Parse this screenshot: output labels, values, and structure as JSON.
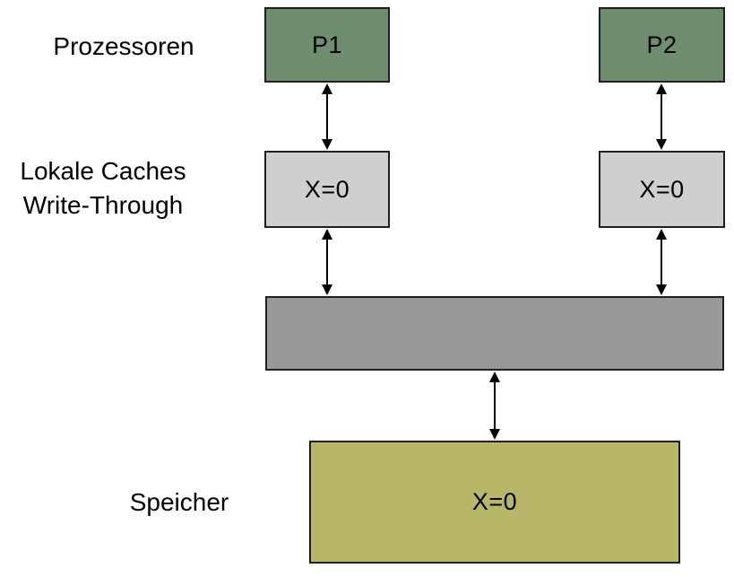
{
  "diagram": {
    "row_labels": {
      "processors": "Prozessoren",
      "caches_line1": "Lokale Caches",
      "caches_line2": "Write-Through",
      "memory": "Speicher"
    },
    "nodes": {
      "processor1": {
        "label": "P1"
      },
      "processor2": {
        "label": "P2"
      },
      "cache1": {
        "value": "X=0"
      },
      "cache2": {
        "value": "X=0"
      },
      "bus": {
        "label": ""
      },
      "memory": {
        "value": "X=0"
      }
    },
    "connections": [
      {
        "from": "processor1",
        "to": "cache1",
        "style": "double-headed-arrow"
      },
      {
        "from": "processor2",
        "to": "cache2",
        "style": "double-headed-arrow"
      },
      {
        "from": "cache1",
        "to": "bus",
        "style": "double-headed-arrow"
      },
      {
        "from": "cache2",
        "to": "bus",
        "style": "double-headed-arrow"
      },
      {
        "from": "bus",
        "to": "memory",
        "style": "double-headed-arrow"
      }
    ],
    "colors": {
      "processor_fill": "#6F8D6F",
      "cache_fill": "#CFCFCF",
      "bus_fill": "#989898",
      "memory_fill": "#B7B669",
      "border": "#1F1F1F",
      "arrow": "#000000",
      "background": "#FFFFFF",
      "text": "#000000"
    }
  }
}
